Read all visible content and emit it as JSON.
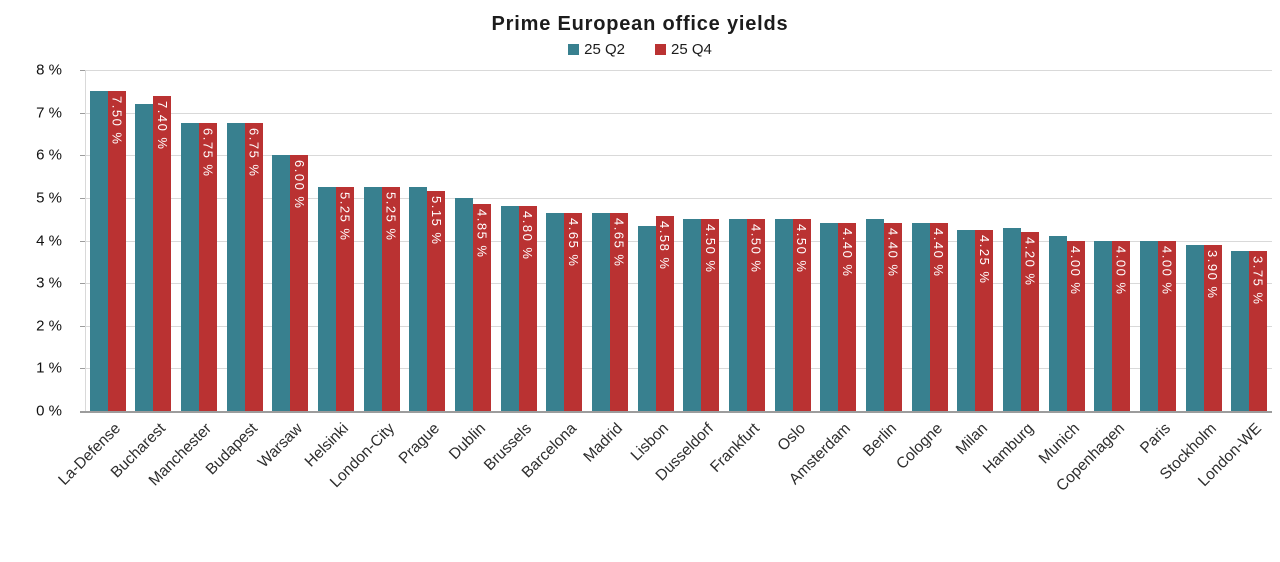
{
  "header": {
    "title": "Prime European office yields"
  },
  "legend": [
    {
      "label": "25 Q2",
      "color": "#38808f"
    },
    {
      "label": "25 Q4",
      "color": "#ba3232"
    }
  ],
  "colors": {
    "q2_teal": "#38808f",
    "q4_red": "#ba3232",
    "gridline": "#d9d9d9",
    "axis": "#9c9c9c",
    "bar_label_text": "#ffffff"
  },
  "chart_data": {
    "type": "bar",
    "title": "Prime European office yields",
    "categories": [
      "La-Defense",
      "Bucharest",
      "Manchester",
      "Budapest",
      "Warsaw",
      "Helsinki",
      "London-City",
      "Prague",
      "Dublin",
      "Brussels",
      "Barcelona",
      "Madrid",
      "Lisbon",
      "Dusseldorf",
      "Frankfurt",
      "Oslo",
      "Amsterdam",
      "Berlin",
      "Cologne",
      "Milan",
      "Hamburg",
      "Munich",
      "Copenhagen",
      "Paris",
      "Stockholm",
      "London-WE"
    ],
    "series": [
      {
        "name": "25 Q2",
        "color": "#38808f",
        "values": [
          7.5,
          7.2,
          6.75,
          6.75,
          6.0,
          5.25,
          5.25,
          5.25,
          5.0,
          4.8,
          4.65,
          4.65,
          4.35,
          4.5,
          4.5,
          4.5,
          4.4,
          4.5,
          4.4,
          4.25,
          4.3,
          4.1,
          4.0,
          4.0,
          3.9,
          3.75
        ],
        "labels": []
      },
      {
        "name": "25 Q4",
        "color": "#ba3232",
        "values": [
          7.5,
          7.4,
          6.75,
          6.75,
          6.0,
          5.25,
          5.25,
          5.15,
          4.85,
          4.8,
          4.65,
          4.65,
          4.58,
          4.5,
          4.5,
          4.5,
          4.4,
          4.4,
          4.4,
          4.25,
          4.2,
          4.0,
          4.0,
          4.0,
          3.9,
          3.75
        ],
        "labels": [
          "7.50 %",
          "7.40 %",
          "6.75 %",
          "6.75 %",
          "6.00 %",
          "5.25 %",
          "5.25 %",
          "5.15 %",
          "4.85 %",
          "4.80 %",
          "4.65 %",
          "4.65 %",
          "4.58 %",
          "4.50 %",
          "4.50 %",
          "4.50 %",
          "4.40 %",
          "4.40 %",
          "4.40 %",
          "4.25 %",
          "4.20 %",
          "4.00 %",
          "4.00 %",
          "4.00 %",
          "3.90 %",
          "3.75 %"
        ]
      }
    ],
    "ylim": [
      0,
      8
    ],
    "ytick_labels": [
      "0 %",
      "1 %",
      "2 %",
      "3 %",
      "4 %",
      "5 %",
      "6 %",
      "7 %",
      "8 %"
    ],
    "xlabel": "",
    "ylabel": "",
    "grid": true,
    "legend_position": "top",
    "bar_value_labels_on": "25 Q4",
    "bar_value_label_rotation": "vertical"
  }
}
